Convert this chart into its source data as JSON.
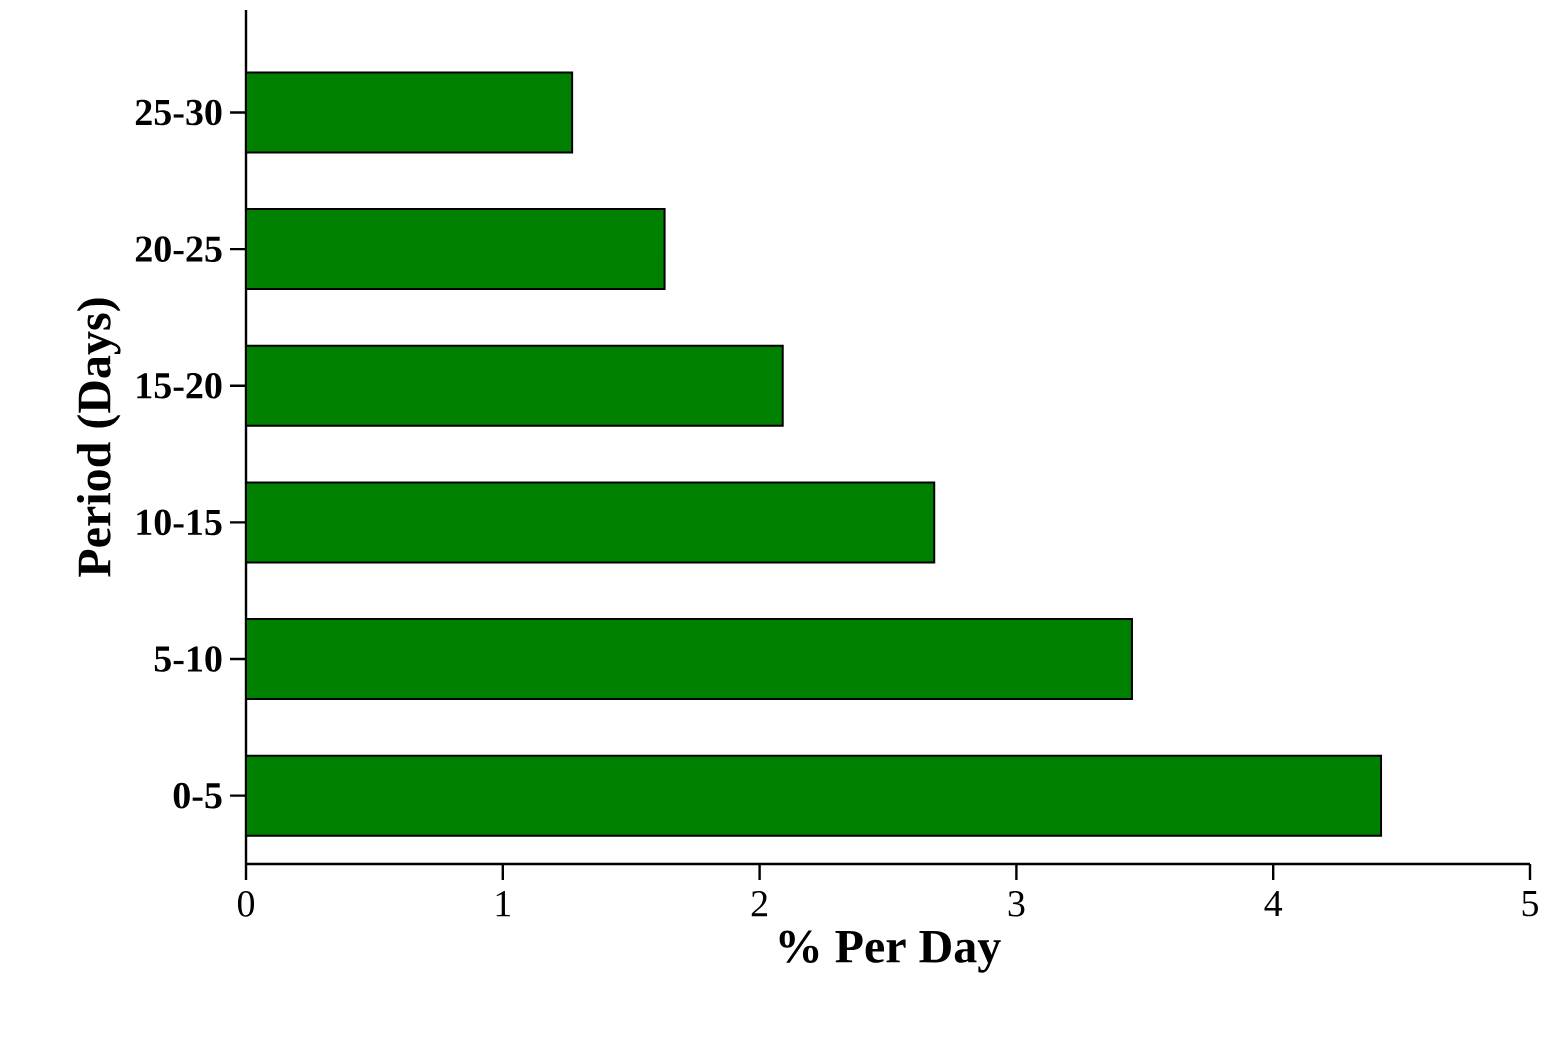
{
  "chart_data": {
    "type": "bar",
    "orientation": "horizontal",
    "categories": [
      "25-30",
      "20-25",
      "15-20",
      "10-15",
      "5-10",
      "0-5"
    ],
    "values": [
      1.27,
      1.63,
      2.09,
      2.68,
      3.45,
      4.42
    ],
    "color": "#008000",
    "xlabel": "% Per Day",
    "ylabel": "Period (Days)",
    "xlim": [
      0,
      5
    ],
    "xticks": [
      0,
      1,
      2,
      3,
      4,
      5
    ],
    "grid": false
  }
}
